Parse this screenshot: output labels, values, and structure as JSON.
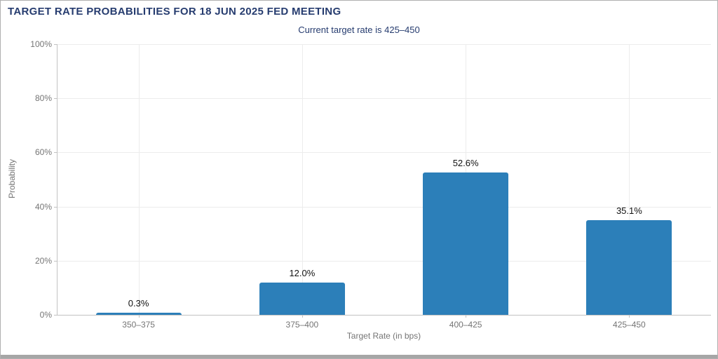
{
  "header": {
    "title": "TARGET RATE PROBABILITIES FOR 18 JUN 2025 FED MEETING",
    "subtitle": "Current target rate is 425–450"
  },
  "chart_data": {
    "type": "bar",
    "title": "TARGET RATE PROBABILITIES FOR 18 JUN 2025 FED MEETING",
    "subtitle": "Current target rate is 425–450",
    "categories": [
      "350–375",
      "375–400",
      "400–425",
      "425–450"
    ],
    "values": [
      0.3,
      12.0,
      52.6,
      35.1
    ],
    "value_labels": [
      "0.3%",
      "12.0%",
      "52.6%",
      "35.1%"
    ],
    "xlabel": "Target Rate (in bps)",
    "ylabel": "Probability",
    "ylim": [
      0,
      100
    ],
    "yticks": [
      "0%",
      "20%",
      "40%",
      "60%",
      "80%",
      "100%"
    ],
    "grid": true,
    "legend": false,
    "colors": {
      "bar": "#2c7fb9",
      "title_text": "#263c6f",
      "axis_text": "#757575",
      "value_label_text": "#111111",
      "gridline": "#ececec",
      "axis_line": "#c2c2c2",
      "window_border": "#b0b0b0",
      "bottom_strip": "#a6a6a6"
    }
  }
}
